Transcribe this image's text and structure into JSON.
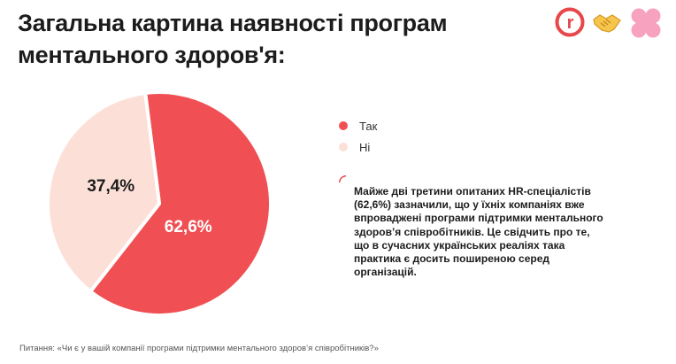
{
  "title": "Загальна картина наявності програм ментального здоров'я:",
  "logos": {
    "r": "r",
    "icons": [
      "handshake-icon",
      "clover-icon"
    ]
  },
  "colors": {
    "yes": "#f05053",
    "no": "#fce0d8",
    "border": "#e8474a"
  },
  "chart_data": {
    "type": "pie",
    "slices": [
      {
        "name": "Так",
        "value": 62.6,
        "label": "62,6%",
        "color": "#f05053"
      },
      {
        "name": "Ні",
        "value": 37.4,
        "label": "37,4%",
        "color": "#fce0d8"
      }
    ],
    "legend": "right"
  },
  "legend": [
    {
      "label": "Так",
      "color": "#f05053"
    },
    {
      "label": "Ні",
      "color": "#fce0d8"
    }
  ],
  "note": "Майже дві третини опитаних HR-спеціалістів (62,6%) зазначили, що у їхніх компаніях вже впроваджені програми підтримки ментального здоров’я співробітників. Це свідчить про те, що в сучасних українських реаліях така практика є досить поширеною серед організацій.",
  "footnote": "Питання: «Чи є у вашій компанії програми підтримки ментального здоров’я співробітників?»"
}
